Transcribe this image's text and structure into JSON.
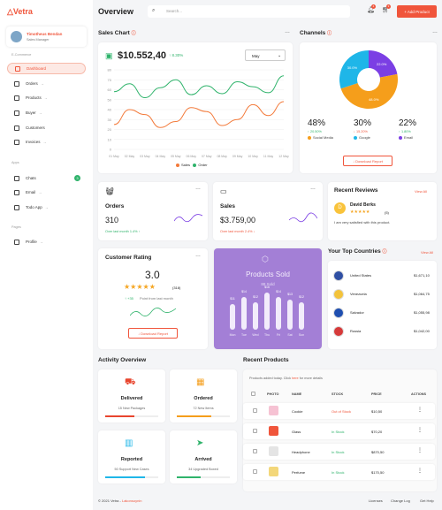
{
  "brand": {
    "name": "Vetra"
  },
  "user": {
    "name": "Timotheus Bendan",
    "role": "Sales Manager"
  },
  "sidebar": {
    "sections": [
      "E-Commerce",
      "Apps",
      "Pages"
    ],
    "items": [
      {
        "label": "Dashboard",
        "icon": "home-icon"
      },
      {
        "label": "Orders",
        "icon": "orders-icon",
        "chev": "→"
      },
      {
        "label": "Products",
        "icon": "products-icon",
        "chev": "→"
      },
      {
        "label": "Buyer",
        "icon": "buyer-icon",
        "chev": "→"
      },
      {
        "label": "Customers",
        "icon": "customers-icon"
      },
      {
        "label": "Invoices",
        "icon": "invoices-icon",
        "chev": "→"
      },
      {
        "label": "Chats",
        "icon": "chat-icon",
        "badge": "3"
      },
      {
        "label": "Email",
        "icon": "email-icon",
        "chev": "→"
      },
      {
        "label": "Todo App",
        "icon": "todo-icon",
        "chev": "→"
      },
      {
        "label": "Profile",
        "icon": "profile-icon",
        "chev": "→"
      }
    ]
  },
  "header": {
    "title": "Overview",
    "search_placeholder": "Search...",
    "notif_count": "4",
    "cart_count": "3",
    "add_product": "+ Add Product"
  },
  "sales_chart": {
    "title": "Sales Chart",
    "amount": "$10.552,40",
    "change": "↑ 8.30%",
    "period": "May",
    "legend": [
      "Sales",
      "Order"
    ]
  },
  "chart_data": {
    "type": "line",
    "x": [
      "01 May",
      "02 May",
      "03 May",
      "04 May",
      "05 May",
      "06 May",
      "07 May",
      "08 May",
      "09 May",
      "10 May",
      "11 May",
      "12 May"
    ],
    "ylim": [
      0,
      80
    ],
    "yticks": [
      "80",
      "70",
      "60",
      "50",
      "40",
      "30",
      "20",
      "10",
      "0"
    ],
    "series": [
      {
        "name": "Sales",
        "color": "#f37a3a",
        "values": [
          25,
          40,
          35,
          22,
          28,
          42,
          38,
          24,
          30,
          45,
          34,
          48
        ]
      },
      {
        "name": "Order",
        "color": "#2fb36b",
        "values": [
          58,
          66,
          52,
          62,
          70,
          55,
          64,
          56,
          68,
          63,
          57,
          74
        ]
      }
    ]
  },
  "channels": {
    "title": "Channels",
    "pie": [
      {
        "label": "22.0%",
        "value": 22,
        "color": "#7b3fe4"
      },
      {
        "label": "48.0%",
        "value": 48,
        "color": "#f59e1b"
      },
      {
        "label": "30.0%",
        "value": 30,
        "color": "#1fb6e8"
      }
    ],
    "stats": [
      {
        "pct": "48%",
        "change": "↑ 20.50%",
        "name": "Social Media",
        "color": "#f59e1b"
      },
      {
        "pct": "30%",
        "change": "↓ 15.20%",
        "name": "Google",
        "color": "#1fb6e8"
      },
      {
        "pct": "22%",
        "change": "↑ 1.80%",
        "name": "Email",
        "color": "#7b3fe4"
      }
    ],
    "download": "↓  Download Report"
  },
  "orders_card": {
    "title": "Orders",
    "value": "310",
    "sub": "Over last month 1.4% ↑"
  },
  "sales_card": {
    "title": "Sales",
    "value": "$3.759,00",
    "sub": "Over last month 2.4% ↓"
  },
  "reviews": {
    "title": "Recent Reviews",
    "view_all": "View All",
    "reviewer": "David Berks",
    "initial": "D",
    "stars": "★★★★★",
    "count": "(5)",
    "text": "I am very satisfied with this product."
  },
  "rating": {
    "title": "Customer Rating",
    "value": "3.0",
    "stars": "★★★★★",
    "count": "(318)",
    "change": "↑ +35",
    "change_text": "Point from last month",
    "download": "↓  Download Report"
  },
  "products_sold": {
    "title": "Products Sold",
    "sub": "88 Sold",
    "bars": [
      {
        "day": "Mon",
        "label": "$11",
        "value": 11
      },
      {
        "day": "Tue",
        "label": "$14",
        "value": 14
      },
      {
        "day": "Wed",
        "label": "$12",
        "value": 12
      },
      {
        "day": "Thu",
        "label": "$16",
        "value": 16
      },
      {
        "day": "Fri",
        "label": "$14",
        "value": 14
      },
      {
        "day": "Sat",
        "label": "$13",
        "value": 13
      },
      {
        "day": "Sun",
        "label": "$12",
        "value": 12
      }
    ]
  },
  "top_countries": {
    "title": "Your Top Countries",
    "view_all": "View All",
    "items": [
      {
        "name": "United States",
        "value": "$1,671,10"
      },
      {
        "name": "Venezuela",
        "value": "$1,064,75"
      },
      {
        "name": "Salvador",
        "value": "$1,055,98"
      },
      {
        "name": "Russia",
        "value": "$1,042,00"
      }
    ]
  },
  "activity": {
    "title": "Activity Overview",
    "items": [
      {
        "title": "Delivered",
        "sub": "15 New Packages",
        "color": "#e8452e",
        "progress": 0.55
      },
      {
        "title": "Ordered",
        "sub": "72 New Items",
        "color": "#f59e1b",
        "progress": 0.65
      },
      {
        "title": "Reported",
        "sub": "50 Support New Cases",
        "color": "#1fb6e8",
        "progress": 0.75
      },
      {
        "title": "Arrived",
        "sub": "34 Upgraded Boxed",
        "color": "#2fb36b",
        "progress": 0.45
      }
    ]
  },
  "recent_products": {
    "title": "Recent Products",
    "sub_a": "Products added today. Click ",
    "sub_link": "here",
    "sub_b": " for more details",
    "headers": [
      "PHOTO",
      "NAME",
      "STOCK",
      "PRICE",
      "ACTIONS"
    ],
    "rows": [
      {
        "name": "Cookie",
        "stock": "Out of Stock",
        "price": "$10,50",
        "thumb": "#f6c2d3"
      },
      {
        "name": "Glass",
        "stock": "In Stock",
        "price": "$70,20",
        "thumb": "#f0553b"
      },
      {
        "name": "Headphone",
        "stock": "In Stock",
        "price": "$870,50",
        "thumb": "#e4e4e4"
      },
      {
        "name": "Perfume",
        "stock": "In Stock",
        "price": "$170,50",
        "thumb": "#f3d77a"
      }
    ]
  },
  "footer": {
    "copy": "© 2021 Vetra - ",
    "link": "Lakonsoynin",
    "links": [
      "Licenses",
      "Change Log",
      "Get Help"
    ]
  }
}
